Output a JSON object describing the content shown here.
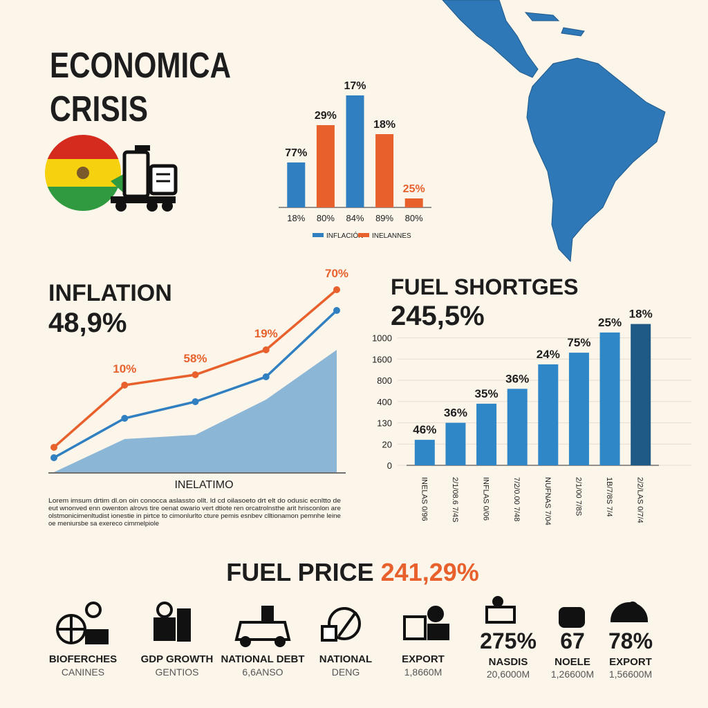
{
  "header": {
    "title_lines": [
      "ECONOMICA",
      "CRISIS"
    ]
  },
  "chart_data": [
    {
      "type": "bar",
      "categories": [
        "18%",
        "80%",
        "84%",
        "89%",
        "80%"
      ],
      "annotations": [
        "77%",
        "29%",
        "17%",
        "18%",
        "25%"
      ],
      "series": [
        {
          "name": "INFLACIÓN",
          "color": "#2f7fc1",
          "values": [
            65,
            null,
            162,
            null,
            null
          ]
        },
        {
          "name": "INELANNES",
          "color": "#e8612c",
          "values": [
            null,
            119,
            null,
            106,
            13
          ]
        }
      ],
      "ylim": [
        0,
        170
      ]
    },
    {
      "type": "line",
      "title": "INFLATION",
      "subtitle": "48,9%",
      "xlabel": "INELATIMO",
      "categories": [
        null,
        null,
        null,
        null,
        null
      ],
      "series": [
        {
          "name": null,
          "kind": "area",
          "color": "#8cb6d6",
          "values": [
            0,
            16,
            18,
            35,
            59
          ]
        },
        {
          "name": null,
          "kind": "line",
          "color": "#2f7fc1",
          "values": [
            7,
            26,
            34,
            46,
            78
          ]
        },
        {
          "name": null,
          "kind": "line",
          "color": "#e8612c",
          "values": [
            12,
            42,
            47,
            59,
            88
          ],
          "annotations": [
            null,
            "10%",
            "58%",
            "19%",
            "70%"
          ]
        }
      ],
      "ylim": [
        0,
        100
      ]
    },
    {
      "type": "bar",
      "title": "FUEL SHORTGES",
      "subtitle": "245,5%",
      "categories": [
        "INELAS 0/96",
        "2/1/08.6 7/4S",
        "INFLAS 0/06",
        "7/2/0.00 7/48",
        "NUFNAS 7/04",
        "2/1/00 7/8S",
        "1B/7/8S 7/4",
        "2/2/LAS 0/7/4"
      ],
      "annotations": [
        "46%",
        "36%",
        "35%",
        "36%",
        "24%",
        "75%",
        "25%",
        "18%"
      ],
      "values": [
        1.2,
        2.0,
        2.9,
        3.6,
        4.75,
        5.3,
        6.25,
        6.65
      ],
      "colors": [
        "#2f87c8",
        "#2f87c8",
        "#2f87c8",
        "#2f87c8",
        "#2f87c8",
        "#2f87c8",
        "#2f87c8",
        "#1f5a86"
      ],
      "ylim": [
        0,
        6.8
      ],
      "yticks": [
        {
          "value": 0,
          "label": "0"
        },
        {
          "value": 1,
          "label": "20"
        },
        {
          "value": 2,
          "label": "130"
        },
        {
          "value": 3,
          "label": "400"
        },
        {
          "value": 4,
          "label": "800"
        },
        {
          "value": 5,
          "label": "1600"
        },
        {
          "value": 6,
          "label": "1000"
        }
      ],
      "grid": true
    }
  ],
  "paragraph": [
    "Lorem imsum drtim dl.on oin conocca aslassto ollt. ld cd oilasoeto drt elt do odusic ecnltto de",
    "eut wnonved enn owenton alrovs tire oenat owario vert dtiote ren orcatrolnsthe arit hrisconlon are",
    "olstmonicimenltudist ionestie in pirtce to cimonlurlto cture pemis esnbev clltionamon pemnhe leine",
    "oe meniursbe sa exereco cimmelpiole"
  ],
  "fuel_price": {
    "label": "FUEL PRICE",
    "value": "241,29%"
  },
  "indicators": [
    {
      "label": "BIOFERCHES",
      "sub": "CANINES"
    },
    {
      "label": "GDP GROWTH",
      "sub": "GENTIOS"
    },
    {
      "label": "NATIONAL DEBT",
      "sub": "6,6ANSO"
    },
    {
      "label": "NATIONAL",
      "sub": "DENG"
    },
    {
      "label": "EXPORT",
      "sub": "1,8660M"
    },
    {
      "value": "275%",
      "label": "NASDIS",
      "sub": "20,6000M"
    },
    {
      "value": "67",
      "label": "NOELE",
      "sub": "1,26600M"
    },
    {
      "value": "78%",
      "label": "EXPORT",
      "sub": "1,56600M"
    }
  ]
}
